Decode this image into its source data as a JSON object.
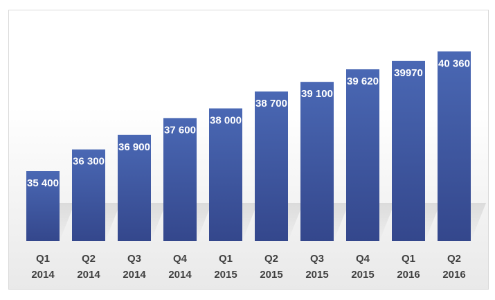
{
  "colors": {
    "bar_top": "#4a68b4",
    "bar_bottom": "#34478c",
    "label_text": "#ffffff",
    "tick_text": "#404040"
  },
  "chart_data": {
    "type": "bar",
    "categories": [
      [
        "Q1",
        "2014"
      ],
      [
        "Q2",
        "2014"
      ],
      [
        "Q3",
        "2014"
      ],
      [
        "Q4",
        "2014"
      ],
      [
        "Q1",
        "2015"
      ],
      [
        "Q2",
        "2015"
      ],
      [
        "Q3",
        "2015"
      ],
      [
        "Q4",
        "2015"
      ],
      [
        "Q1",
        "2016"
      ],
      [
        "Q2",
        "2016"
      ]
    ],
    "values": [
      35400,
      36300,
      36900,
      37600,
      38000,
      38700,
      39100,
      39620,
      39970,
      40360
    ],
    "data_labels": [
      "35 400",
      "36 300",
      "36 900",
      "37 600",
      "38 000",
      "38 700",
      "39 100",
      "39 620",
      "39970",
      "40 360"
    ],
    "title": "",
    "xlabel": "",
    "ylabel": "",
    "ylim": [
      32500,
      41000
    ],
    "grid": false,
    "legend": "none"
  }
}
